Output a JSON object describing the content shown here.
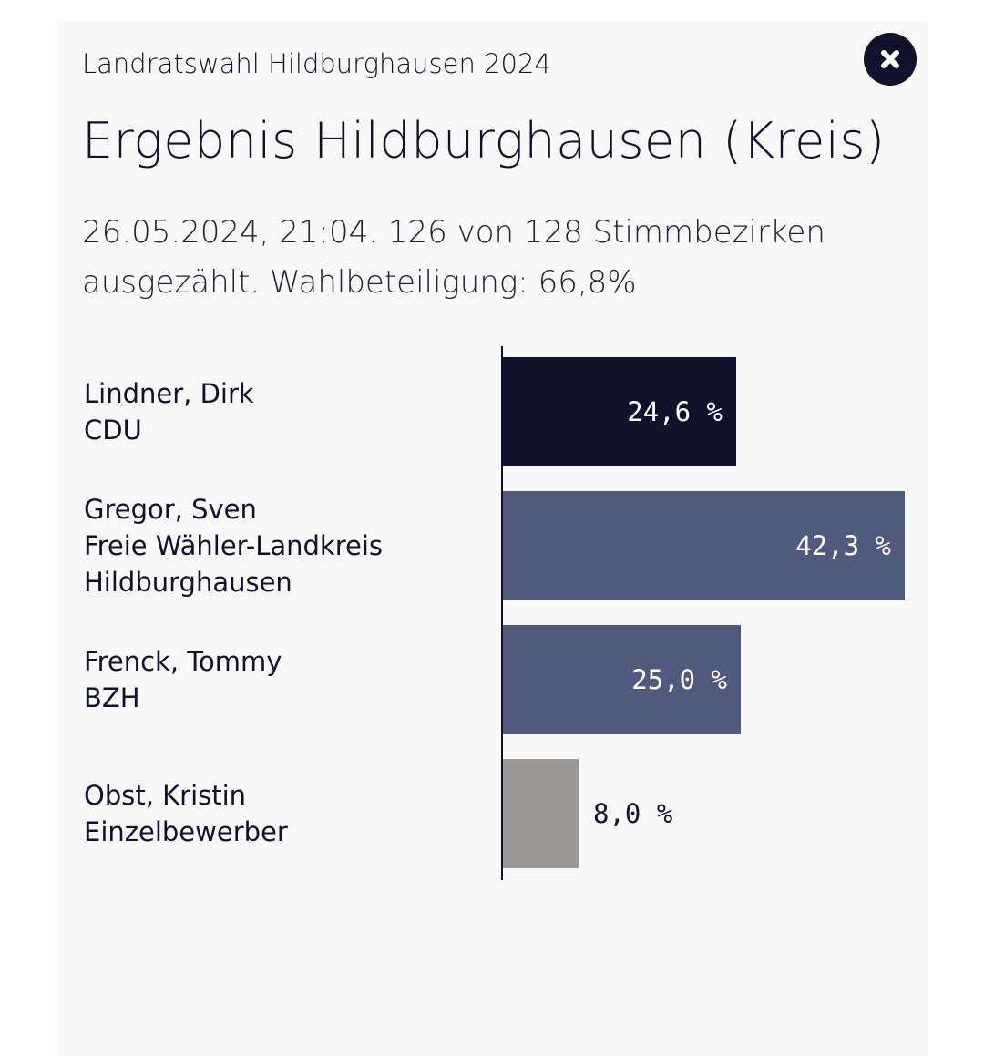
{
  "header": {
    "kicker": "Landratswahl Hildburghausen 2024",
    "title": "Ergebnis Hildburghausen (Kreis)",
    "subtitle": "26.05.2024, 21:04. 126 von 128 Stimmbezirken ausgezählt. Wahlbeteiligung: 66,8%",
    "close_icon": "close-x-icon"
  },
  "chart_data": {
    "type": "bar",
    "orientation": "horizontal",
    "categories": [
      "Lindner, Dirk CDU",
      "Gregor, Sven Freie Wähler-Landkreis Hildburghausen",
      "Frenck, Tommy BZH",
      "Obst, Kristin Einzelbewerber"
    ],
    "candidates": [
      {
        "name": "Lindner, Dirk",
        "party": "CDU",
        "value": 24.6,
        "label": "24,6 %",
        "color": "#11112b"
      },
      {
        "name": "Gregor, Sven",
        "party": "Freie Wähler-Landkreis Hildburghausen",
        "party_lines": [
          "Freie Wähler-Landkreis",
          "Hildburghausen"
        ],
        "value": 42.3,
        "label": "42,3 %",
        "color": "#50597e"
      },
      {
        "name": "Frenck, Tommy",
        "party": "BZH",
        "value": 25.0,
        "label": "25,0 %",
        "color": "#50597e"
      },
      {
        "name": "Obst, Kristin",
        "party": "Einzelbewerber",
        "value": 8.0,
        "label": "8,0 %",
        "color": "#9a9998"
      }
    ],
    "values": [
      24.6,
      42.3,
      25.0,
      8.0
    ],
    "xlim": [
      0,
      42.3
    ],
    "grid": false,
    "legend": "none"
  }
}
